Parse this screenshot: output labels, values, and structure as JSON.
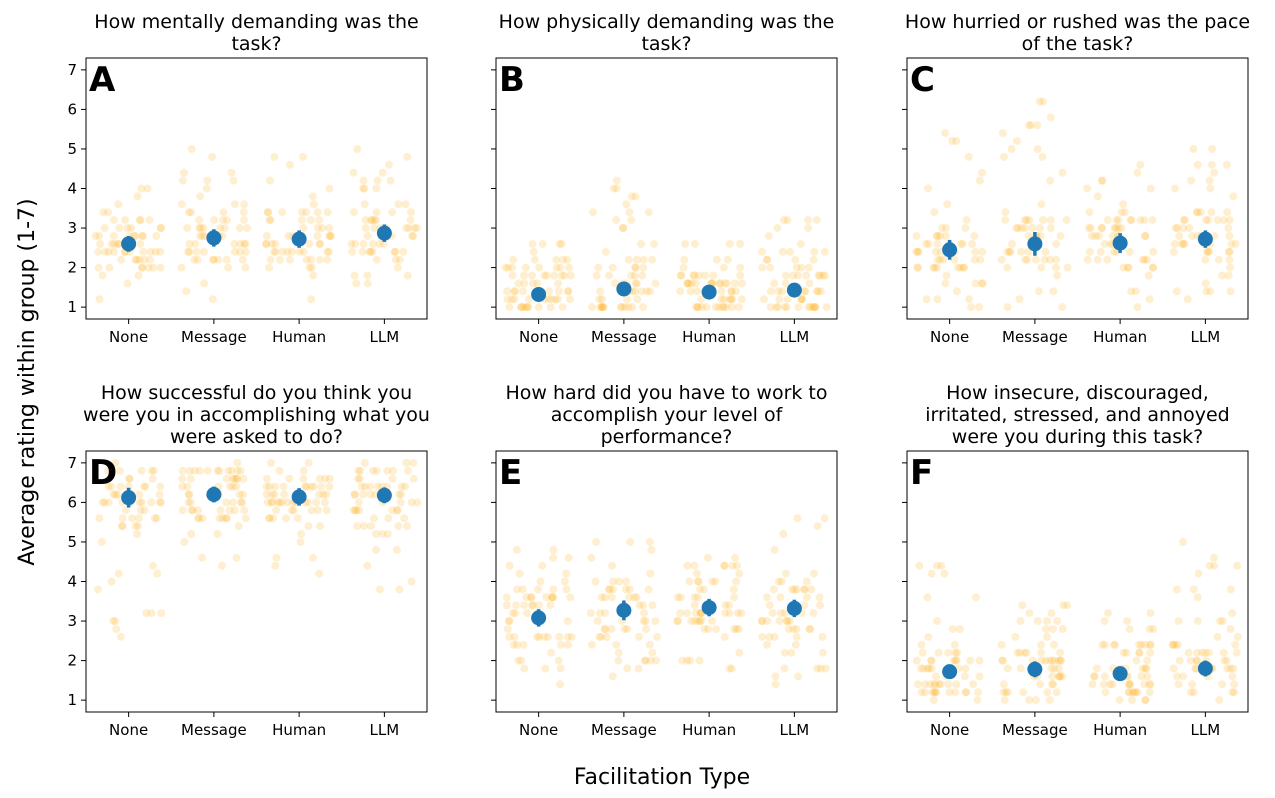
{
  "figure": {
    "ylabel": "Average rating within group (1-7)",
    "xlabel": "Facilitation Type"
  },
  "colors": {
    "raw_points": "#ffa500",
    "mean_marker": "#1f77b4",
    "axes": "#000000"
  },
  "chart_data": [
    {
      "type": "scatter",
      "panel": "A",
      "title_lines": [
        "How mentally demanding was the",
        "task?"
      ],
      "categories": [
        "None",
        "Message",
        "Human",
        "LLM"
      ],
      "ylim": [
        0.7,
        7.3
      ],
      "yticks": [
        1,
        2,
        3,
        4,
        5,
        6,
        7
      ],
      "ytick_labels_visible": true,
      "grid": false,
      "series": [
        {
          "values": [
            2.6,
            2.75,
            2.72,
            2.87
          ],
          "ci": [
            0.2,
            0.22,
            0.22,
            0.22
          ]
        }
      ],
      "raw_range": [
        [
          1.2,
          4.0
        ],
        [
          1.2,
          5.0
        ],
        [
          1.2,
          4.8
        ],
        [
          1.6,
          5.0
        ]
      ]
    },
    {
      "type": "scatter",
      "panel": "B",
      "title_lines": [
        "How physically demanding was the",
        "task?"
      ],
      "categories": [
        "None",
        "Message",
        "Human",
        "LLM"
      ],
      "ylim": [
        0.7,
        7.3
      ],
      "yticks": [
        1,
        2,
        3,
        4,
        5,
        6,
        7
      ],
      "ytick_labels_visible": false,
      "grid": false,
      "series": [
        {
          "values": [
            1.32,
            1.46,
            1.38,
            1.43
          ],
          "ci": [
            0.1,
            0.14,
            0.1,
            0.1
          ]
        }
      ],
      "raw_range": [
        [
          1.0,
          2.6
        ],
        [
          1.0,
          4.2
        ],
        [
          1.0,
          2.6
        ],
        [
          1.0,
          3.2
        ]
      ]
    },
    {
      "type": "scatter",
      "panel": "C",
      "title_lines": [
        "How hurried or rushed was the pace",
        "of the task?"
      ],
      "categories": [
        "None",
        "Message",
        "Human",
        "LLM"
      ],
      "ylim": [
        0.7,
        7.3
      ],
      "yticks": [
        1,
        2,
        3,
        4,
        5,
        6,
        7
      ],
      "ytick_labels_visible": false,
      "grid": false,
      "series": [
        {
          "values": [
            2.45,
            2.6,
            2.62,
            2.72
          ],
          "ci": [
            0.25,
            0.3,
            0.25,
            0.22
          ]
        }
      ],
      "raw_range": [
        [
          1.0,
          5.4
        ],
        [
          1.0,
          6.2
        ],
        [
          1.0,
          4.6
        ],
        [
          1.2,
          5.0
        ]
      ]
    },
    {
      "type": "scatter",
      "panel": "D",
      "title_lines": [
        "How successful do you think you",
        "were you in accomplishing what you",
        "were asked to do?"
      ],
      "categories": [
        "None",
        "Message",
        "Human",
        "LLM"
      ],
      "ylim": [
        0.7,
        7.3
      ],
      "yticks": [
        1,
        2,
        3,
        4,
        5,
        6,
        7
      ],
      "ytick_labels_visible": true,
      "grid": false,
      "series": [
        {
          "values": [
            6.12,
            6.2,
            6.14,
            6.18
          ],
          "ci": [
            0.25,
            0.2,
            0.22,
            0.2
          ]
        }
      ],
      "raw_range": [
        [
          2.6,
          7.0
        ],
        [
          4.4,
          7.0
        ],
        [
          4.2,
          7.0
        ],
        [
          3.8,
          7.0
        ]
      ]
    },
    {
      "type": "scatter",
      "panel": "E",
      "title_lines": [
        "How hard did you have to work to",
        "accomplish your level of",
        "performance?"
      ],
      "categories": [
        "None",
        "Message",
        "Human",
        "LLM"
      ],
      "ylim": [
        0.7,
        7.3
      ],
      "yticks": [
        1,
        2,
        3,
        4,
        5,
        6,
        7
      ],
      "ytick_labels_visible": false,
      "grid": false,
      "series": [
        {
          "values": [
            3.08,
            3.27,
            3.34,
            3.32
          ],
          "ci": [
            0.22,
            0.25,
            0.22,
            0.22
          ]
        }
      ],
      "raw_range": [
        [
          1.4,
          4.8
        ],
        [
          1.6,
          5.0
        ],
        [
          1.8,
          4.6
        ],
        [
          1.4,
          5.6
        ]
      ]
    },
    {
      "type": "scatter",
      "panel": "F",
      "title_lines": [
        "How insecure, discouraged,",
        "irritated, stressed, and annoyed",
        "were you during this task?"
      ],
      "categories": [
        "None",
        "Message",
        "Human",
        "LLM"
      ],
      "ylim": [
        0.7,
        7.3
      ],
      "yticks": [
        1,
        2,
        3,
        4,
        5,
        6,
        7
      ],
      "ytick_labels_visible": false,
      "grid": false,
      "series": [
        {
          "values": [
            1.72,
            1.78,
            1.67,
            1.8
          ],
          "ci": [
            0.18,
            0.2,
            0.15,
            0.2
          ]
        }
      ],
      "raw_range": [
        [
          1.0,
          4.4
        ],
        [
          1.0,
          3.4
        ],
        [
          1.0,
          3.2
        ],
        [
          1.0,
          5.0
        ]
      ]
    }
  ]
}
